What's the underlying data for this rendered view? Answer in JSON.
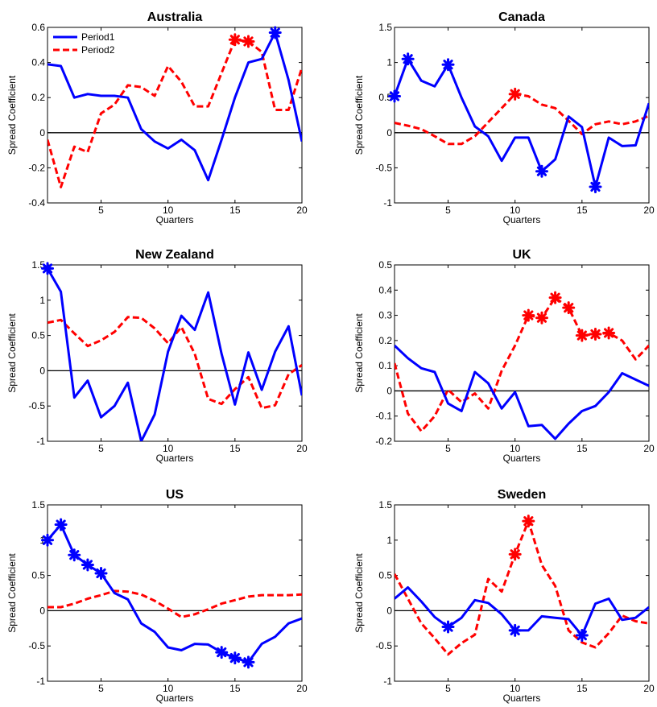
{
  "figure": {
    "xlabel": "Quarters",
    "ylabel": "Spread Coefficient",
    "legend": {
      "placement": "top-left",
      "entries": [
        "Period1",
        "Period2"
      ]
    }
  },
  "colors": {
    "period1": "#0000ff",
    "period2": "#ff0000",
    "zero_line": "#000000"
  },
  "chart_data": [
    {
      "type": "line",
      "title": "Australia",
      "xlabel": "Quarters",
      "ylabel": "Spread Coefficient",
      "xlim": [
        1,
        20
      ],
      "ylim": [
        -0.4,
        0.6
      ],
      "xticks": [
        5,
        10,
        15,
        20
      ],
      "yticks": [
        -0.4,
        -0.2,
        0,
        0.2,
        0.4,
        0.6
      ],
      "ytick_labels": [
        "-0.4",
        "-0.2",
        "0",
        "0.2",
        "0.4",
        "0.6"
      ],
      "show_legend": true,
      "x": [
        1,
        2,
        3,
        4,
        5,
        6,
        7,
        8,
        9,
        10,
        11,
        12,
        13,
        14,
        15,
        16,
        17,
        18,
        19,
        20
      ],
      "series": [
        {
          "name": "Period1",
          "values": [
            0.39,
            0.38,
            0.2,
            0.22,
            0.21,
            0.21,
            0.2,
            0.02,
            -0.05,
            -0.09,
            -0.04,
            -0.1,
            -0.27,
            -0.04,
            0.2,
            0.4,
            0.42,
            0.57,
            0.3,
            -0.05
          ],
          "markers": [
            18
          ]
        },
        {
          "name": "Period2",
          "values": [
            -0.04,
            -0.31,
            -0.08,
            -0.11,
            0.11,
            0.16,
            0.27,
            0.26,
            0.21,
            0.38,
            0.29,
            0.15,
            0.15,
            0.34,
            0.53,
            0.52,
            0.46,
            0.13,
            0.13,
            0.37
          ],
          "markers": [
            15,
            16
          ]
        }
      ]
    },
    {
      "type": "line",
      "title": "Canada",
      "xlabel": "Quarters",
      "ylabel": "Spread Coefficient",
      "xlim": [
        1,
        20
      ],
      "ylim": [
        -1,
        1.5
      ],
      "xticks": [
        5,
        10,
        15,
        20
      ],
      "yticks": [
        -1,
        -0.5,
        0,
        0.5,
        1,
        1.5
      ],
      "ytick_labels": [
        "-1",
        "-0.5",
        "0",
        "0.5",
        "1",
        "1.5"
      ],
      "show_legend": false,
      "x": [
        1,
        2,
        3,
        4,
        5,
        6,
        7,
        8,
        9,
        10,
        11,
        12,
        13,
        14,
        15,
        16,
        17,
        18,
        19,
        20
      ],
      "series": [
        {
          "name": "Period1",
          "values": [
            0.52,
            1.05,
            0.74,
            0.66,
            0.97,
            0.5,
            0.09,
            -0.05,
            -0.4,
            -0.07,
            -0.07,
            -0.55,
            -0.38,
            0.23,
            0.08,
            -0.77,
            -0.07,
            -0.19,
            -0.18,
            0.42
          ],
          "markers": [
            1,
            2,
            5,
            12,
            16
          ]
        },
        {
          "name": "Period2",
          "values": [
            0.14,
            0.1,
            0.05,
            -0.05,
            -0.16,
            -0.16,
            -0.05,
            0.15,
            0.35,
            0.55,
            0.52,
            0.4,
            0.35,
            0.17,
            -0.02,
            0.12,
            0.16,
            0.12,
            0.16,
            0.24
          ],
          "markers": [
            10
          ]
        }
      ]
    },
    {
      "type": "line",
      "title": "New Zealand",
      "xlabel": "Quarters",
      "ylabel": "Spread Coefficient",
      "xlim": [
        1,
        20
      ],
      "ylim": [
        -1,
        1.5
      ],
      "xticks": [
        5,
        10,
        15,
        20
      ],
      "yticks": [
        -1,
        -0.5,
        0,
        0.5,
        1,
        1.5
      ],
      "ytick_labels": [
        "-1",
        "-0.5",
        "0",
        "0.5",
        "1",
        "1.5"
      ],
      "show_legend": false,
      "x": [
        1,
        2,
        3,
        4,
        5,
        6,
        7,
        8,
        9,
        10,
        11,
        12,
        13,
        14,
        15,
        16,
        17,
        18,
        19,
        20
      ],
      "series": [
        {
          "name": "Period1",
          "values": [
            1.45,
            1.12,
            -0.38,
            -0.14,
            -0.66,
            -0.5,
            -0.17,
            -1.0,
            -0.62,
            0.27,
            0.78,
            0.58,
            1.11,
            0.24,
            -0.48,
            0.26,
            -0.27,
            0.27,
            0.63,
            -0.35
          ],
          "markers": [
            1
          ]
        },
        {
          "name": "Period2",
          "values": [
            0.68,
            0.72,
            0.53,
            0.35,
            0.43,
            0.55,
            0.76,
            0.75,
            0.6,
            0.39,
            0.62,
            0.24,
            -0.4,
            -0.47,
            -0.26,
            -0.09,
            -0.53,
            -0.49,
            -0.05,
            0.08
          ],
          "markers": []
        }
      ]
    },
    {
      "type": "line",
      "title": "UK",
      "xlabel": "Quarters",
      "ylabel": "Spread Coefficient",
      "xlim": [
        1,
        20
      ],
      "ylim": [
        -0.2,
        0.5
      ],
      "xticks": [
        5,
        10,
        15,
        20
      ],
      "yticks": [
        -0.2,
        -0.1,
        0,
        0.1,
        0.2,
        0.3,
        0.4,
        0.5
      ],
      "ytick_labels": [
        "-0.2",
        "-0.1",
        "0",
        "0.1",
        "0.2",
        "0.3",
        "0.4",
        "0.5"
      ],
      "show_legend": false,
      "x": [
        1,
        2,
        3,
        4,
        5,
        6,
        7,
        8,
        9,
        10,
        11,
        12,
        13,
        14,
        15,
        16,
        17,
        18,
        19,
        20
      ],
      "series": [
        {
          "name": "Period1",
          "values": [
            0.18,
            0.13,
            0.09,
            0.075,
            -0.05,
            -0.08,
            0.075,
            0.03,
            -0.07,
            -0.005,
            -0.14,
            -0.135,
            -0.19,
            -0.13,
            -0.08,
            -0.06,
            -0.005,
            0.07,
            0.045,
            0.02
          ],
          "markers": []
        },
        {
          "name": "Period2",
          "values": [
            0.11,
            -0.09,
            -0.16,
            -0.1,
            0.005,
            -0.045,
            -0.01,
            -0.07,
            0.08,
            0.18,
            0.3,
            0.29,
            0.37,
            0.33,
            0.22,
            0.225,
            0.23,
            0.2,
            0.125,
            0.18
          ],
          "markers": [
            11,
            12,
            13,
            14,
            15,
            16,
            17
          ]
        }
      ]
    },
    {
      "type": "line",
      "title": "US",
      "xlabel": "Quarters",
      "ylabel": "Spread Coefficient",
      "xlim": [
        1,
        20
      ],
      "ylim": [
        -1,
        1.5
      ],
      "xticks": [
        5,
        10,
        15,
        20
      ],
      "yticks": [
        -1,
        -0.5,
        0,
        0.5,
        1,
        1.5
      ],
      "ytick_labels": [
        "-1",
        "-0.5",
        "0",
        "0.5",
        "1",
        "1.5"
      ],
      "show_legend": false,
      "x": [
        1,
        2,
        3,
        4,
        5,
        6,
        7,
        8,
        9,
        10,
        11,
        12,
        13,
        14,
        15,
        16,
        17,
        18,
        19,
        20
      ],
      "series": [
        {
          "name": "Period1",
          "values": [
            1.0,
            1.22,
            0.79,
            0.65,
            0.53,
            0.25,
            0.16,
            -0.18,
            -0.3,
            -0.52,
            -0.56,
            -0.47,
            -0.48,
            -0.59,
            -0.67,
            -0.73,
            -0.47,
            -0.37,
            -0.18,
            -0.11
          ],
          "markers": [
            1,
            2,
            3,
            4,
            5,
            14,
            15,
            16
          ]
        },
        {
          "name": "Period2",
          "values": [
            0.05,
            0.05,
            0.1,
            0.17,
            0.22,
            0.28,
            0.27,
            0.23,
            0.14,
            0.03,
            -0.09,
            -0.05,
            0.02,
            0.1,
            0.15,
            0.2,
            0.22,
            0.22,
            0.22,
            0.23
          ],
          "markers": []
        }
      ]
    },
    {
      "type": "line",
      "title": "Sweden",
      "xlabel": "Quarters",
      "ylabel": "Spread Coefficient",
      "xlim": [
        1,
        20
      ],
      "ylim": [
        -1,
        1.5
      ],
      "xticks": [
        5,
        10,
        15,
        20
      ],
      "yticks": [
        -1,
        -0.5,
        0,
        0.5,
        1,
        1.5
      ],
      "ytick_labels": [
        "-1",
        "-0.5",
        "0",
        "0.5",
        "1",
        "1.5"
      ],
      "show_legend": false,
      "x": [
        1,
        2,
        3,
        4,
        5,
        6,
        7,
        8,
        9,
        10,
        11,
        12,
        13,
        14,
        15,
        16,
        17,
        18,
        19,
        20
      ],
      "series": [
        {
          "name": "Period1",
          "values": [
            0.17,
            0.33,
            0.13,
            -0.09,
            -0.23,
            -0.1,
            0.15,
            0.11,
            -0.05,
            -0.28,
            -0.28,
            -0.08,
            -0.1,
            -0.12,
            -0.35,
            0.1,
            0.17,
            -0.13,
            -0.1,
            0.05
          ],
          "markers": [
            5,
            10,
            15
          ]
        },
        {
          "name": "Period2",
          "values": [
            0.52,
            0.17,
            -0.18,
            -0.39,
            -0.62,
            -0.46,
            -0.34,
            0.45,
            0.27,
            0.8,
            1.27,
            0.65,
            0.35,
            -0.28,
            -0.45,
            -0.52,
            -0.32,
            -0.07,
            -0.15,
            -0.18
          ],
          "markers": [
            10,
            11
          ]
        }
      ]
    }
  ]
}
